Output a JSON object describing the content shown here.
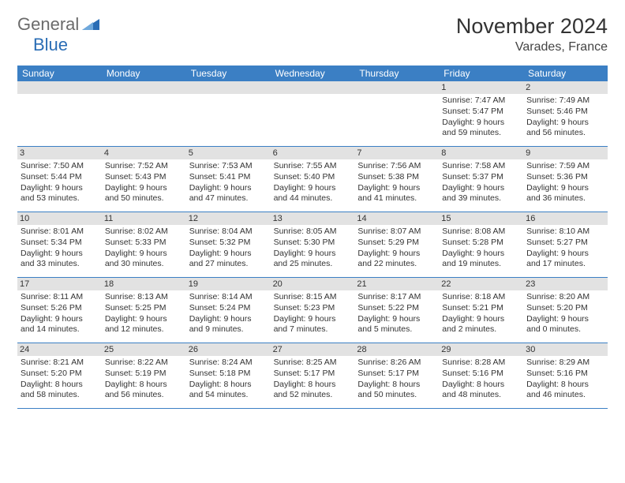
{
  "logo": {
    "general": "General",
    "blue": "Blue"
  },
  "title": "November 2024",
  "location": "Varades, France",
  "headerColor": "#3b7fc4",
  "dayHeaderBg": "#e2e2e2",
  "dayNames": [
    "Sunday",
    "Monday",
    "Tuesday",
    "Wednesday",
    "Thursday",
    "Friday",
    "Saturday"
  ],
  "weeks": [
    [
      {
        "n": "",
        "sunrise": "",
        "sunset": "",
        "daylight": ""
      },
      {
        "n": "",
        "sunrise": "",
        "sunset": "",
        "daylight": ""
      },
      {
        "n": "",
        "sunrise": "",
        "sunset": "",
        "daylight": ""
      },
      {
        "n": "",
        "sunrise": "",
        "sunset": "",
        "daylight": ""
      },
      {
        "n": "",
        "sunrise": "",
        "sunset": "",
        "daylight": ""
      },
      {
        "n": "1",
        "sunrise": "Sunrise: 7:47 AM",
        "sunset": "Sunset: 5:47 PM",
        "daylight": "Daylight: 9 hours and 59 minutes."
      },
      {
        "n": "2",
        "sunrise": "Sunrise: 7:49 AM",
        "sunset": "Sunset: 5:46 PM",
        "daylight": "Daylight: 9 hours and 56 minutes."
      }
    ],
    [
      {
        "n": "3",
        "sunrise": "Sunrise: 7:50 AM",
        "sunset": "Sunset: 5:44 PM",
        "daylight": "Daylight: 9 hours and 53 minutes."
      },
      {
        "n": "4",
        "sunrise": "Sunrise: 7:52 AM",
        "sunset": "Sunset: 5:43 PM",
        "daylight": "Daylight: 9 hours and 50 minutes."
      },
      {
        "n": "5",
        "sunrise": "Sunrise: 7:53 AM",
        "sunset": "Sunset: 5:41 PM",
        "daylight": "Daylight: 9 hours and 47 minutes."
      },
      {
        "n": "6",
        "sunrise": "Sunrise: 7:55 AM",
        "sunset": "Sunset: 5:40 PM",
        "daylight": "Daylight: 9 hours and 44 minutes."
      },
      {
        "n": "7",
        "sunrise": "Sunrise: 7:56 AM",
        "sunset": "Sunset: 5:38 PM",
        "daylight": "Daylight: 9 hours and 41 minutes."
      },
      {
        "n": "8",
        "sunrise": "Sunrise: 7:58 AM",
        "sunset": "Sunset: 5:37 PM",
        "daylight": "Daylight: 9 hours and 39 minutes."
      },
      {
        "n": "9",
        "sunrise": "Sunrise: 7:59 AM",
        "sunset": "Sunset: 5:36 PM",
        "daylight": "Daylight: 9 hours and 36 minutes."
      }
    ],
    [
      {
        "n": "10",
        "sunrise": "Sunrise: 8:01 AM",
        "sunset": "Sunset: 5:34 PM",
        "daylight": "Daylight: 9 hours and 33 minutes."
      },
      {
        "n": "11",
        "sunrise": "Sunrise: 8:02 AM",
        "sunset": "Sunset: 5:33 PM",
        "daylight": "Daylight: 9 hours and 30 minutes."
      },
      {
        "n": "12",
        "sunrise": "Sunrise: 8:04 AM",
        "sunset": "Sunset: 5:32 PM",
        "daylight": "Daylight: 9 hours and 27 minutes."
      },
      {
        "n": "13",
        "sunrise": "Sunrise: 8:05 AM",
        "sunset": "Sunset: 5:30 PM",
        "daylight": "Daylight: 9 hours and 25 minutes."
      },
      {
        "n": "14",
        "sunrise": "Sunrise: 8:07 AM",
        "sunset": "Sunset: 5:29 PM",
        "daylight": "Daylight: 9 hours and 22 minutes."
      },
      {
        "n": "15",
        "sunrise": "Sunrise: 8:08 AM",
        "sunset": "Sunset: 5:28 PM",
        "daylight": "Daylight: 9 hours and 19 minutes."
      },
      {
        "n": "16",
        "sunrise": "Sunrise: 8:10 AM",
        "sunset": "Sunset: 5:27 PM",
        "daylight": "Daylight: 9 hours and 17 minutes."
      }
    ],
    [
      {
        "n": "17",
        "sunrise": "Sunrise: 8:11 AM",
        "sunset": "Sunset: 5:26 PM",
        "daylight": "Daylight: 9 hours and 14 minutes."
      },
      {
        "n": "18",
        "sunrise": "Sunrise: 8:13 AM",
        "sunset": "Sunset: 5:25 PM",
        "daylight": "Daylight: 9 hours and 12 minutes."
      },
      {
        "n": "19",
        "sunrise": "Sunrise: 8:14 AM",
        "sunset": "Sunset: 5:24 PM",
        "daylight": "Daylight: 9 hours and 9 minutes."
      },
      {
        "n": "20",
        "sunrise": "Sunrise: 8:15 AM",
        "sunset": "Sunset: 5:23 PM",
        "daylight": "Daylight: 9 hours and 7 minutes."
      },
      {
        "n": "21",
        "sunrise": "Sunrise: 8:17 AM",
        "sunset": "Sunset: 5:22 PM",
        "daylight": "Daylight: 9 hours and 5 minutes."
      },
      {
        "n": "22",
        "sunrise": "Sunrise: 8:18 AM",
        "sunset": "Sunset: 5:21 PM",
        "daylight": "Daylight: 9 hours and 2 minutes."
      },
      {
        "n": "23",
        "sunrise": "Sunrise: 8:20 AM",
        "sunset": "Sunset: 5:20 PM",
        "daylight": "Daylight: 9 hours and 0 minutes."
      }
    ],
    [
      {
        "n": "24",
        "sunrise": "Sunrise: 8:21 AM",
        "sunset": "Sunset: 5:20 PM",
        "daylight": "Daylight: 8 hours and 58 minutes."
      },
      {
        "n": "25",
        "sunrise": "Sunrise: 8:22 AM",
        "sunset": "Sunset: 5:19 PM",
        "daylight": "Daylight: 8 hours and 56 minutes."
      },
      {
        "n": "26",
        "sunrise": "Sunrise: 8:24 AM",
        "sunset": "Sunset: 5:18 PM",
        "daylight": "Daylight: 8 hours and 54 minutes."
      },
      {
        "n": "27",
        "sunrise": "Sunrise: 8:25 AM",
        "sunset": "Sunset: 5:17 PM",
        "daylight": "Daylight: 8 hours and 52 minutes."
      },
      {
        "n": "28",
        "sunrise": "Sunrise: 8:26 AM",
        "sunset": "Sunset: 5:17 PM",
        "daylight": "Daylight: 8 hours and 50 minutes."
      },
      {
        "n": "29",
        "sunrise": "Sunrise: 8:28 AM",
        "sunset": "Sunset: 5:16 PM",
        "daylight": "Daylight: 8 hours and 48 minutes."
      },
      {
        "n": "30",
        "sunrise": "Sunrise: 8:29 AM",
        "sunset": "Sunset: 5:16 PM",
        "daylight": "Daylight: 8 hours and 46 minutes."
      }
    ]
  ]
}
